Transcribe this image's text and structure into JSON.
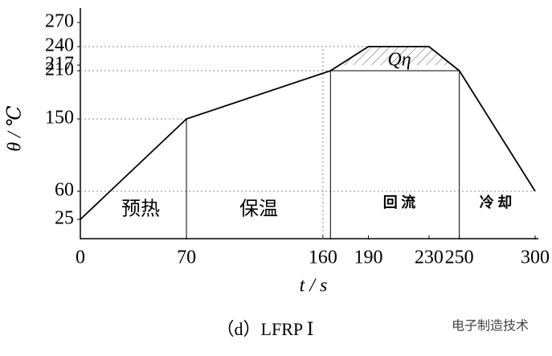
{
  "chart_data": {
    "type": "line",
    "x": [
      0,
      70,
      165,
      190,
      230,
      250,
      300
    ],
    "series": [
      {
        "name": null,
        "color": "#000000",
        "values": [
          25,
          150,
          210,
          240,
          240,
          210,
          60
        ]
      }
    ],
    "xlim": [
      0,
      300
    ],
    "ylim": [
      0,
      270
    ],
    "xticks": [
      0,
      70,
      160,
      190,
      230,
      250,
      300
    ],
    "yticks": [
      25,
      60,
      150,
      210,
      217,
      240,
      270
    ],
    "xlabel": "t / s",
    "ylabel": "θ / ℃",
    "hatch_level": 217,
    "annotations": [
      "预热",
      "保温",
      "回  流",
      "冷    却",
      "Qη"
    ],
    "caption": "（d）LFRP Ⅰ",
    "watermark": "电子制造技术"
  }
}
